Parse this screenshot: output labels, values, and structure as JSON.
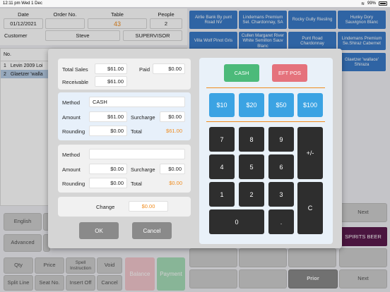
{
  "status": {
    "time": "12:11 pm",
    "date": "Wed 1 Dec",
    "battery": "99%"
  },
  "order": {
    "date_label": "Date",
    "date": "01/12/2021",
    "order_no_label": "Order No.",
    "order_no": "",
    "table_label": "Table",
    "table": "43",
    "people_label": "People",
    "people": "2",
    "customer_label": "Customer",
    "customer": "Steve",
    "staff": "SUPERVISOR"
  },
  "order_list": {
    "header": "No.",
    "rows": [
      {
        "no": "1",
        "item": "Levin 2009 Loi"
      },
      {
        "no": "2",
        "item": "Glaetzer 'walla"
      }
    ]
  },
  "products": [
    "Airlie Bank By punt Road NV",
    "Lindemans Premium Sel. Chardonnay, SA",
    "Rocky Gully Riesling",
    "Hunky Dory Sauvignon Blanc",
    "Villa Wolf Pinot Gris",
    "Cullen Margaret River White Semillon Sauv Blanc",
    "Punt Road Chardonnay",
    "Lindemans Premium Se.Shiraz Cabernet",
    "Glaetzer 'wallace' Shiraza"
  ],
  "side_buttons": {
    "english": "English",
    "advanced": "Advanced",
    "qty": "Qty",
    "price": "Price",
    "spell": "Spell Instruction",
    "void": "Void",
    "split_line": "Split Line",
    "seat_no": "Seat No.",
    "insert_off": "Insert Off",
    "cancel": "Cancel",
    "balance": "Balance",
    "payment": "Payment",
    "next1": "Next",
    "spirits_beer": "SPIRITS BEER",
    "prior": "Prior",
    "next2": "Next"
  },
  "dialog": {
    "total_sales_label": "Total Sales",
    "total_sales": "$61.00",
    "paid_label": "Paid",
    "paid": "$0.00",
    "receivable_label": "Receivable",
    "receivable": "$61.00",
    "p1": {
      "method_label": "Method",
      "method": "CASH",
      "amount_label": "Amount",
      "amount": "$61.00",
      "surcharge_label": "Surcharge",
      "surcharge": "$0.00",
      "rounding_label": "Rounding",
      "rounding": "$0.00",
      "total_label": "Total",
      "total": "$61.00"
    },
    "p2": {
      "method_label": "Method",
      "method": "",
      "amount_label": "Amount",
      "amount": "$0.00",
      "surcharge_label": "Surcharge",
      "surcharge": "$0.00",
      "rounding_label": "Rounding",
      "rounding": "$0.00",
      "total_label": "Total",
      "total": "$0.00"
    },
    "change_label": "Change",
    "change": "$0.00",
    "ok": "OK",
    "cancel": "Cancel",
    "cash": "CASH",
    "eftpos": "EFT POS",
    "quick_amounts": [
      "$10",
      "$20",
      "$50",
      "$100"
    ],
    "keys": [
      "7",
      "8",
      "9",
      "4",
      "5",
      "6",
      "1",
      "2",
      "3",
      "0",
      "."
    ],
    "plusminus": "+/-",
    "clear": "C"
  },
  "colors": {
    "accent_orange": "#f08c1e",
    "product_blue": "#3a7bc8",
    "cash_green": "#4cba7a",
    "eft_red": "#e5727c",
    "amount_blue": "#3ba3e3"
  }
}
